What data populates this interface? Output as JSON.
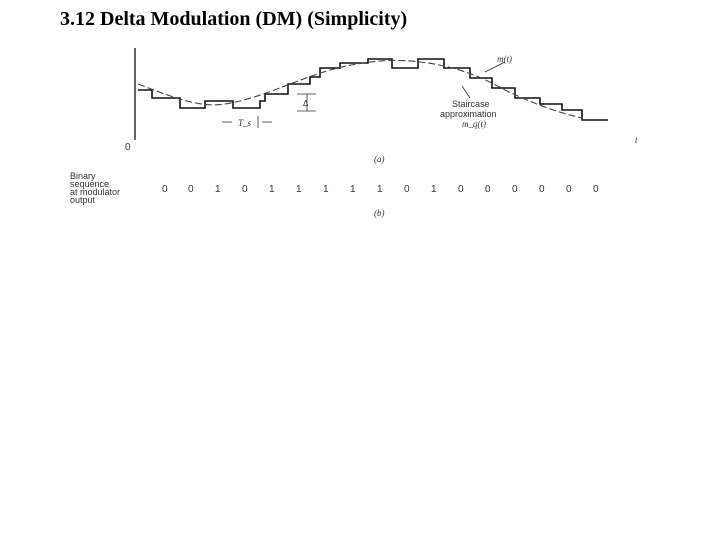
{
  "slide": {
    "title": "3.12 Delta Modulation (DM) (Simplicity)"
  },
  "figure": {
    "part_a": {
      "caption": "(a)",
      "signal_label": "m(t)",
      "staircase_label_line1": "Staircase",
      "staircase_label_line2": "approximation",
      "staircase_label_line3": "m_q(t)",
      "ts_label": "T_s",
      "delta_label": "Δ",
      "origin_label": "0",
      "time_axis_label": "t"
    },
    "part_b": {
      "caption": "(b)",
      "row_label_lines": [
        "Binary",
        "sequence",
        "at modulator",
        "output"
      ],
      "bits": [
        "0",
        "0",
        "1",
        "0",
        "1",
        "1",
        "1",
        "1",
        "1",
        "0",
        "1",
        "0",
        "0",
        "0",
        "0",
        "0",
        "0"
      ]
    }
  }
}
